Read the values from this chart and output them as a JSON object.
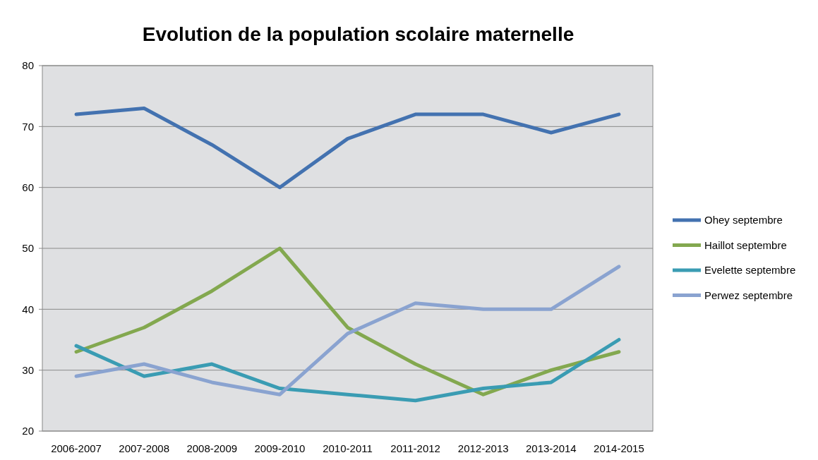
{
  "chart_data": {
    "type": "line",
    "title": "Evolution de la population scolaire maternelle",
    "categories": [
      "2006-2007",
      "2007-2008",
      "2008-2009",
      "2009-2010",
      "2010-2011",
      "2011-2012",
      "2012-2013",
      "2013-2014",
      "2014-2015"
    ],
    "series": [
      {
        "name": "Ohey septembre",
        "color": "#4372b0",
        "values": [
          72,
          73,
          67,
          60,
          68,
          72,
          72,
          69,
          72
        ]
      },
      {
        "name": "Haillot septembre",
        "color": "#83a84f",
        "values": [
          33,
          37,
          43,
          50,
          37,
          31,
          26,
          30,
          33
        ]
      },
      {
        "name": "Evelette septembre",
        "color": "#3a9cb3",
        "values": [
          34,
          29,
          31,
          27,
          26,
          25,
          27,
          28,
          35
        ]
      },
      {
        "name": "Perwez septembre",
        "color": "#8aa3d0",
        "values": [
          29,
          31,
          28,
          26,
          36,
          41,
          40,
          40,
          47
        ]
      }
    ],
    "ylim": [
      20,
      80
    ],
    "yticks": [
      20,
      30,
      40,
      50,
      60,
      70,
      80
    ],
    "grid": "y",
    "legend": "right",
    "marker": "none",
    "line_style": "solid"
  }
}
